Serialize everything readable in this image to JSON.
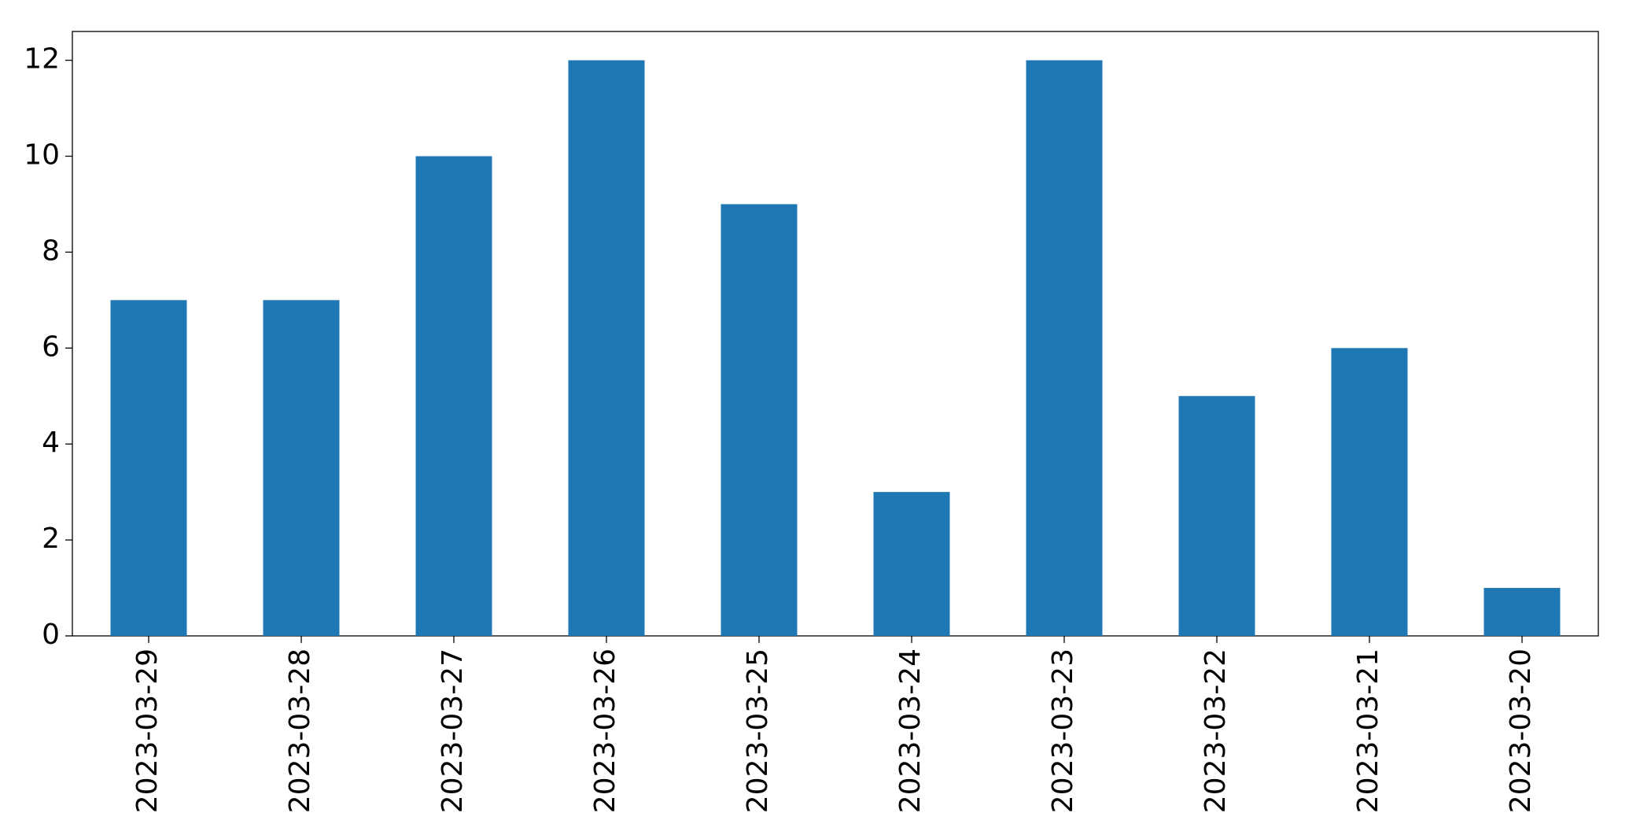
{
  "chart_data": {
    "type": "bar",
    "categories": [
      "2023-03-29",
      "2023-03-28",
      "2023-03-27",
      "2023-03-26",
      "2023-03-25",
      "2023-03-24",
      "2023-03-23",
      "2023-03-22",
      "2023-03-21",
      "2023-03-20"
    ],
    "values": [
      7,
      7,
      10,
      12,
      9,
      3,
      12,
      5,
      6,
      1
    ],
    "color": "#1f77b4",
    "ylim": [
      0,
      12.6
    ],
    "yticks": [
      0,
      2,
      4,
      6,
      8,
      10,
      12
    ],
    "grid": false
  }
}
